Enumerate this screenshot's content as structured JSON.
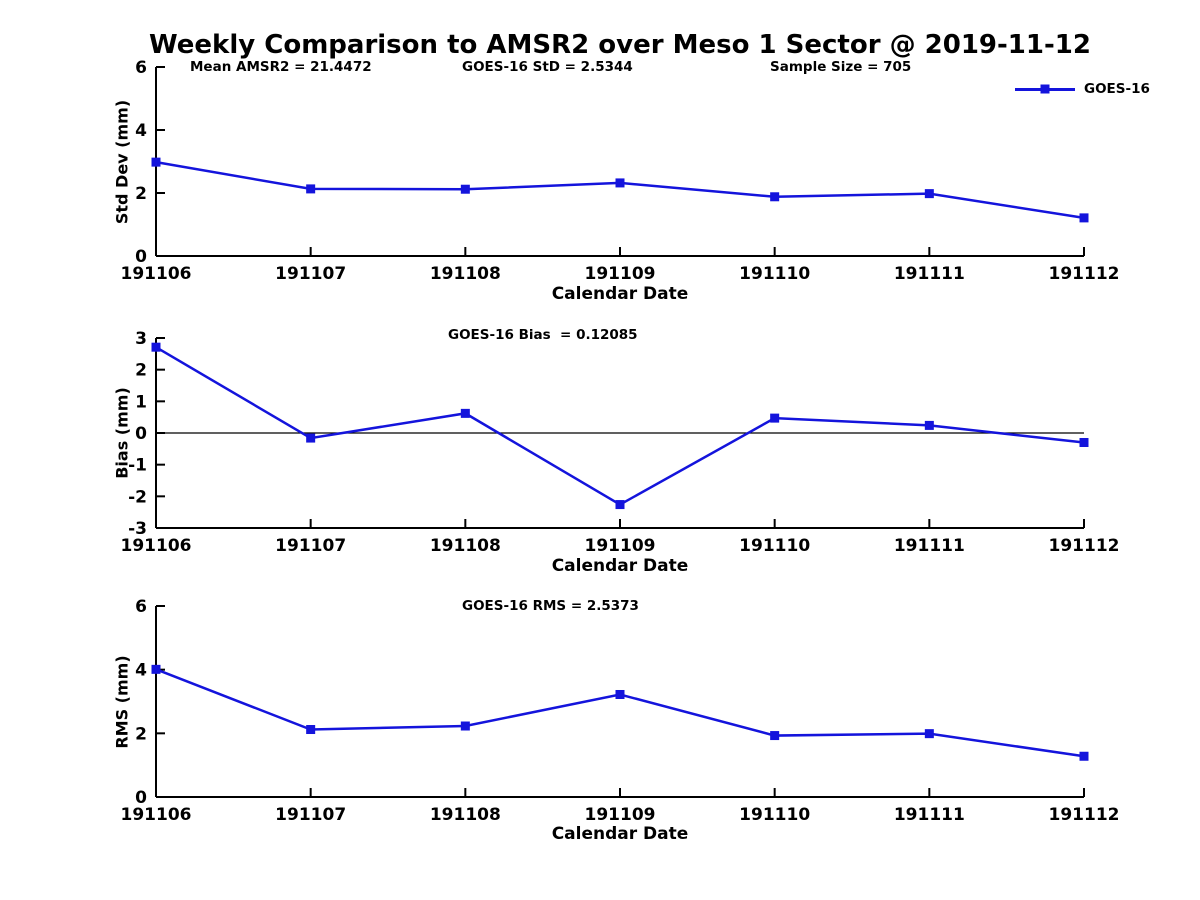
{
  "figure": {
    "title": "Weekly Comparison to AMSR2 over Meso 1 Sector @ 2019-11-12",
    "legend_label": "GOES-16"
  },
  "colors": {
    "series_blue": "#1414dc",
    "axis_black": "#000000"
  },
  "chart_data": [
    {
      "type": "line",
      "panel": "std-dev",
      "stats": [
        "Mean AMSR2 = 21.4472",
        "GOES-16 StD = 2.5344",
        "Sample Size = 705"
      ],
      "ylabel": "Std Dev (mm)",
      "xlabel": "Calendar Date",
      "categories": [
        "191106",
        "191107",
        "191108",
        "191109",
        "191110",
        "191111",
        "191112"
      ],
      "series": [
        {
          "name": "GOES-16",
          "marker": "square",
          "values": [
            2.98,
            2.13,
            2.12,
            2.32,
            1.88,
            1.98,
            1.21
          ]
        }
      ],
      "ylim": [
        0,
        6
      ],
      "yticks": [
        0,
        2,
        4,
        6
      ],
      "zero_line": false,
      "grid": false,
      "legend_position": "top-right"
    },
    {
      "type": "line",
      "panel": "bias",
      "stats": [
        "GOES-16 Bias  = 0.12085"
      ],
      "ylabel": "Bias (mm)",
      "xlabel": "Calendar Date",
      "categories": [
        "191106",
        "191107",
        "191108",
        "191109",
        "191110",
        "191111",
        "191112"
      ],
      "series": [
        {
          "name": "GOES-16",
          "marker": "square",
          "values": [
            2.71,
            -0.16,
            0.62,
            -2.26,
            0.47,
            0.24,
            -0.3
          ]
        }
      ],
      "ylim": [
        -3,
        3
      ],
      "yticks": [
        3,
        2,
        1,
        0,
        -1,
        -2,
        -3
      ],
      "zero_line": true,
      "grid": false,
      "legend_position": "none"
    },
    {
      "type": "line",
      "panel": "rms",
      "stats": [
        "GOES-16 RMS = 2.5373"
      ],
      "ylabel": "RMS (mm)",
      "xlabel": "Calendar Date",
      "categories": [
        "191106",
        "191107",
        "191108",
        "191109",
        "191110",
        "191111",
        "191112"
      ],
      "series": [
        {
          "name": "GOES-16",
          "marker": "square",
          "values": [
            4.01,
            2.12,
            2.23,
            3.22,
            1.93,
            1.99,
            1.28
          ]
        }
      ],
      "ylim": [
        0,
        6
      ],
      "yticks": [
        0,
        2,
        4,
        6
      ],
      "zero_line": false,
      "grid": false,
      "legend_position": "none"
    }
  ]
}
